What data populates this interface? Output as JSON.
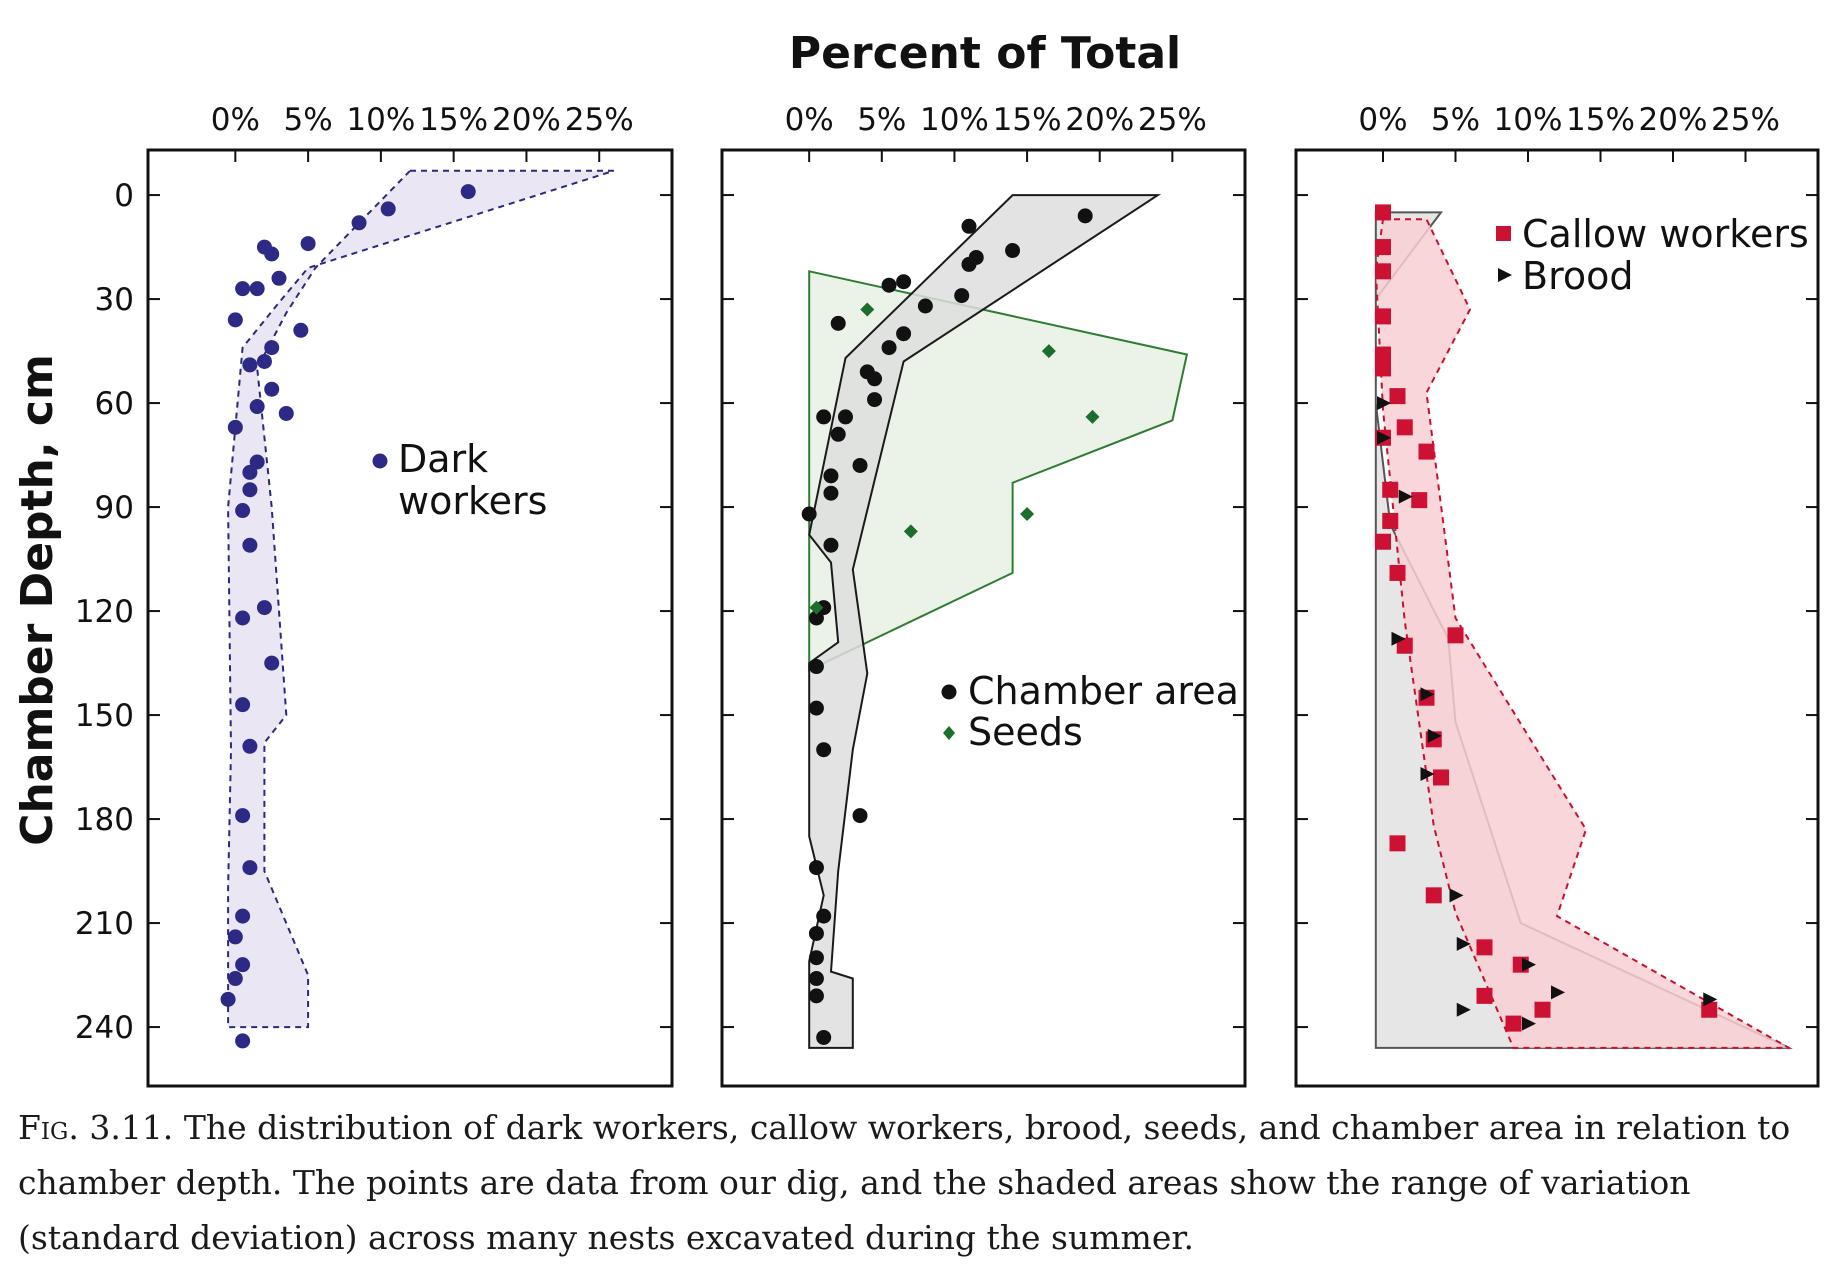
{
  "chart_data": {
    "type": "scatter",
    "title": "Percent of Total",
    "ylabel": "Chamber Depth, cm",
    "xlim": [
      -6,
      30
    ],
    "ylim": [
      -13,
      257
    ],
    "y_reversed": true,
    "x_ticks": [
      0,
      5,
      10,
      15,
      20,
      25
    ],
    "x_tick_labels": [
      "0%",
      "5%",
      "10%",
      "15%",
      "20%",
      "25%"
    ],
    "y_ticks": [
      0,
      30,
      60,
      90,
      120,
      150,
      180,
      210,
      240
    ],
    "y_tick_labels": [
      "0",
      "30",
      "60",
      "90",
      "120",
      "150",
      "180",
      "210",
      "240"
    ],
    "panels": [
      {
        "id": "dark",
        "legend_position": "center",
        "bands": [
          {
            "series": "Dark workers",
            "fill": "#e6e2f1",
            "stroke": "#2b2a78",
            "dash": "6,5",
            "polygon": [
              [
                12,
                -7
              ],
              [
                26,
                -7
              ],
              [
                5,
                21
              ],
              [
                3,
                31
              ],
              [
                0.5,
                44
              ],
              [
                -0.5,
                90
              ],
              [
                -0.3,
                160
              ],
              [
                -0.5,
                200
              ],
              [
                -0.5,
                240
              ],
              [
                5,
                240
              ],
              [
                5,
                225
              ],
              [
                2,
                195
              ],
              [
                2,
                158
              ],
              [
                3.5,
                150
              ],
              [
                2.5,
                90
              ],
              [
                1.5,
                50
              ],
              [
                3.5,
                34
              ],
              [
                5.5,
                21
              ]
            ]
          }
        ],
        "series": [
          {
            "name": "Dark workers",
            "marker": "circle",
            "color": "#2d2a86",
            "points": [
              [
                16,
                -1
              ],
              [
                10.5,
                4
              ],
              [
                8.5,
                8
              ],
              [
                5,
                14
              ],
              [
                2,
                15
              ],
              [
                2.5,
                17
              ],
              [
                3,
                24
              ],
              [
                1.5,
                27
              ],
              [
                0.5,
                27
              ],
              [
                0,
                36
              ],
              [
                4.5,
                39
              ],
              [
                2.5,
                44
              ],
              [
                2,
                48
              ],
              [
                1,
                49
              ],
              [
                2.5,
                56
              ],
              [
                1.5,
                61
              ],
              [
                3.5,
                63
              ],
              [
                0,
                67
              ],
              [
                1.5,
                77
              ],
              [
                1,
                80
              ],
              [
                1,
                85
              ],
              [
                0.5,
                91
              ],
              [
                1,
                101
              ],
              [
                2,
                119
              ],
              [
                0.5,
                122
              ],
              [
                2.5,
                135
              ],
              [
                0.5,
                147
              ],
              [
                1,
                159
              ],
              [
                0.5,
                179
              ],
              [
                1,
                194
              ],
              [
                0.5,
                208
              ],
              [
                0,
                214
              ],
              [
                0.5,
                222
              ],
              [
                0,
                226
              ],
              [
                -0.5,
                232
              ],
              [
                0.5,
                244
              ]
            ]
          }
        ]
      },
      {
        "id": "chamber",
        "legend_position": "center-right",
        "bands": [
          {
            "series": "Seeds",
            "fill": "#e7f1e4",
            "stroke": "#2e7d32",
            "dash": "",
            "polygon": [
              [
                0,
                22
              ],
              [
                26,
                46
              ],
              [
                25,
                65
              ],
              [
                14,
                83
              ],
              [
                14,
                109
              ],
              [
                0,
                137
              ]
            ]
          },
          {
            "series": "Chamber area",
            "fill": "#dedede",
            "stroke": "#1a1a1a",
            "dash": "",
            "polygon": [
              [
                14,
                0
              ],
              [
                24,
                0
              ],
              [
                6.5,
                48
              ],
              [
                3,
                108
              ],
              [
                4,
                138
              ],
              [
                3,
                160
              ],
              [
                2,
                195
              ],
              [
                1.5,
                224
              ],
              [
                3,
                226
              ],
              [
                3,
                246
              ],
              [
                0,
                246
              ],
              [
                0,
                221
              ],
              [
                1,
                202
              ],
              [
                0,
                185
              ],
              [
                0,
                135
              ],
              [
                2,
                129
              ],
              [
                1.5,
                106
              ],
              [
                0,
                98
              ],
              [
                2.5,
                47
              ]
            ]
          }
        ],
        "series": [
          {
            "name": "Chamber area",
            "marker": "circle",
            "color": "#111111",
            "points": [
              [
                19,
                6
              ],
              [
                11,
                9
              ],
              [
                14,
                16
              ],
              [
                11.5,
                18
              ],
              [
                11,
                20
              ],
              [
                6.5,
                25
              ],
              [
                5.5,
                26
              ],
              [
                10.5,
                29
              ],
              [
                8,
                32
              ],
              [
                2,
                37
              ],
              [
                6.5,
                40
              ],
              [
                5.5,
                44
              ],
              [
                4,
                51
              ],
              [
                4.5,
                53
              ],
              [
                4.5,
                59
              ],
              [
                2.5,
                64
              ],
              [
                1,
                64
              ],
              [
                2,
                69
              ],
              [
                3.5,
                78
              ],
              [
                1.5,
                81
              ],
              [
                1.5,
                86
              ],
              [
                0,
                92
              ],
              [
                1.5,
                101
              ],
              [
                1,
                119
              ],
              [
                0.5,
                122
              ],
              [
                0.5,
                136
              ],
              [
                0.5,
                148
              ],
              [
                1,
                160
              ],
              [
                3.5,
                179
              ],
              [
                0.5,
                194
              ],
              [
                1,
                208
              ],
              [
                0.5,
                213
              ],
              [
                0.5,
                220
              ],
              [
                0.5,
                226
              ],
              [
                0.5,
                231
              ],
              [
                1,
                243
              ]
            ]
          },
          {
            "name": "Seeds",
            "marker": "diamond",
            "color": "#1b6e2c",
            "points": [
              [
                4,
                33
              ],
              [
                16.5,
                45
              ],
              [
                19.5,
                64
              ],
              [
                15,
                92
              ],
              [
                7,
                97
              ],
              [
                0.5,
                119
              ]
            ]
          }
        ]
      },
      {
        "id": "callow",
        "legend_position": "top-right",
        "bands": [
          {
            "series": "Brood",
            "fill": "#e3e2e2",
            "stroke": "#555555",
            "dash": "",
            "polygon": [
              [
                -0.5,
                5
              ],
              [
                4,
                5
              ],
              [
                -0.5,
                30
              ],
              [
                -0.5,
                60
              ],
              [
                0.5,
                95
              ],
              [
                4.5,
                128
              ],
              [
                5,
                152
              ],
              [
                9.5,
                210
              ],
              [
                28,
                246
              ],
              [
                -0.5,
                246
              ],
              [
                -0.5,
                230
              ],
              [
                -0.5,
                195
              ],
              [
                -0.5,
                150
              ],
              [
                -0.5,
                100
              ],
              [
                -0.5,
                60
              ]
            ]
          },
          {
            "series": "Callow workers",
            "fill": "#f7cfd3",
            "stroke": "#c8102e",
            "dash": "6,5",
            "polygon": [
              [
                0,
                7
              ],
              [
                3,
                7
              ],
              [
                6,
                33
              ],
              [
                3,
                57
              ],
              [
                5,
                122
              ],
              [
                14,
                183
              ],
              [
                12,
                208
              ],
              [
                28,
                246
              ],
              [
                9,
                246
              ],
              [
                5,
                207
              ],
              [
                3.5,
                182
              ],
              [
                1.5,
                123
              ],
              [
                0,
                62
              ],
              [
                -0.5,
                22
              ]
            ]
          }
        ],
        "series": [
          {
            "name": "Callow workers",
            "marker": "square",
            "color": "#cc1133",
            "points": [
              [
                0,
                5
              ],
              [
                0,
                15
              ],
              [
                0,
                22
              ],
              [
                0,
                35
              ],
              [
                0,
                46
              ],
              [
                0,
                48
              ],
              [
                0,
                50
              ],
              [
                1,
                58
              ],
              [
                1.5,
                67
              ],
              [
                0,
                70
              ],
              [
                3,
                74
              ],
              [
                0.5,
                85
              ],
              [
                2.5,
                88
              ],
              [
                0.5,
                94
              ],
              [
                0,
                100
              ],
              [
                1,
                109
              ],
              [
                1.5,
                130
              ],
              [
                5,
                127
              ],
              [
                3,
                145
              ],
              [
                3.5,
                157
              ],
              [
                4,
                168
              ],
              [
                1,
                187
              ],
              [
                3.5,
                202
              ],
              [
                7,
                217
              ],
              [
                9.5,
                222
              ],
              [
                7,
                231
              ],
              [
                11,
                235
              ],
              [
                22.5,
                235
              ],
              [
                9,
                239
              ]
            ]
          },
          {
            "name": "Brood",
            "marker": "triangle",
            "color": "#111111",
            "points": [
              [
                0,
                60
              ],
              [
                0,
                70
              ],
              [
                1.5,
                87
              ],
              [
                1,
                128
              ],
              [
                3,
                144
              ],
              [
                3.5,
                156
              ],
              [
                3,
                167
              ],
              [
                5,
                202
              ],
              [
                5.5,
                216
              ],
              [
                10,
                222
              ],
              [
                12,
                230
              ],
              [
                22.5,
                232
              ],
              [
                5.5,
                235
              ],
              [
                10,
                239
              ]
            ]
          }
        ]
      }
    ]
  },
  "legends": {
    "dark": [
      "Dark",
      "workers"
    ],
    "chamber": [
      "Chamber area",
      "Seeds"
    ],
    "callow": [
      "Callow workers",
      "Brood"
    ]
  },
  "caption": {
    "fig_number": "Fig. 3.11.",
    "text": "The distribution of dark workers, callow workers, brood, seeds, and chamber area in relation to chamber depth. The points are data from our dig, and the shaded areas show the range of variation (standard deviation) across many nests excavated during the summer."
  }
}
